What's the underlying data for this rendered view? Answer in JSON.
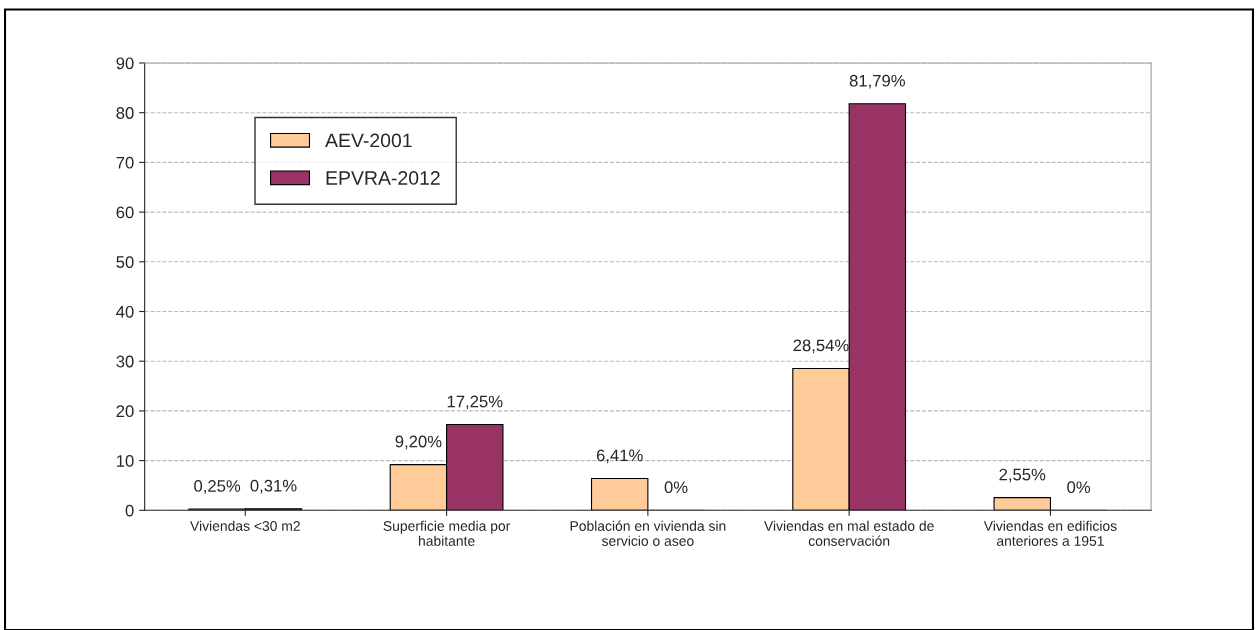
{
  "chart_data": {
    "type": "bar",
    "categories": [
      "Viviendas <30 m2",
      "Superficie media por\nhabitante",
      "Población en vivienda sin\nservicio o aseo",
      "Viviendas en mal estado de\nconservación",
      "Viviendas en edificios\nanteriores a 1951"
    ],
    "series": [
      {
        "name": "AEV-2001",
        "color": "#ffcc99",
        "values": [
          0.25,
          9.2,
          6.41,
          28.54,
          2.55
        ],
        "value_labels": [
          "0,25%",
          "9,20%",
          "6,41%",
          "28,54%",
          "2,55%"
        ]
      },
      {
        "name": "EPVRA-2012",
        "color": "#993366",
        "values": [
          0.31,
          17.25,
          0,
          81.79,
          0
        ],
        "value_labels": [
          "0,31%",
          "17,25%",
          "0%",
          "81,79%",
          "0%"
        ]
      }
    ],
    "ylim": [
      0,
      90
    ],
    "yticks": [
      0,
      10,
      20,
      30,
      40,
      50,
      60,
      70,
      80,
      90
    ],
    "grid": "y",
    "legend": "top left"
  }
}
